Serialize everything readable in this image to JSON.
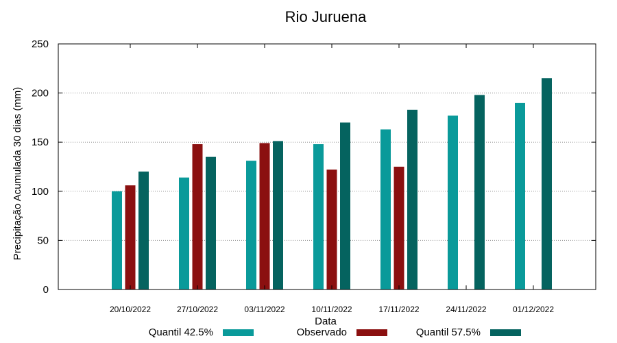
{
  "chart_data": {
    "type": "bar",
    "title": "Rio Juruena",
    "xlabel": "Data",
    "ylabel": "Precipitação Acumulada 30 dias (mm)",
    "ylim": [
      0,
      250
    ],
    "yticks": [
      0,
      50,
      100,
      150,
      200,
      250
    ],
    "grid": true,
    "legend_position": "bottom",
    "categories": [
      "20/10/2022",
      "27/10/2022",
      "03/11/2022",
      "10/11/2022",
      "17/11/2022",
      "24/11/2022",
      "01/12/2022"
    ],
    "series": [
      {
        "name": "Quantil 42.5%",
        "color": "#0a9a9a",
        "values": [
          100,
          114,
          131,
          148,
          163,
          177,
          190
        ]
      },
      {
        "name": "Observado",
        "color": "#8b1010",
        "values": [
          106,
          148,
          149,
          122,
          125,
          null,
          null
        ]
      },
      {
        "name": "Quantil 57.5%",
        "color": "#05635f",
        "values": [
          120,
          135,
          151,
          170,
          183,
          198,
          215
        ]
      }
    ]
  }
}
